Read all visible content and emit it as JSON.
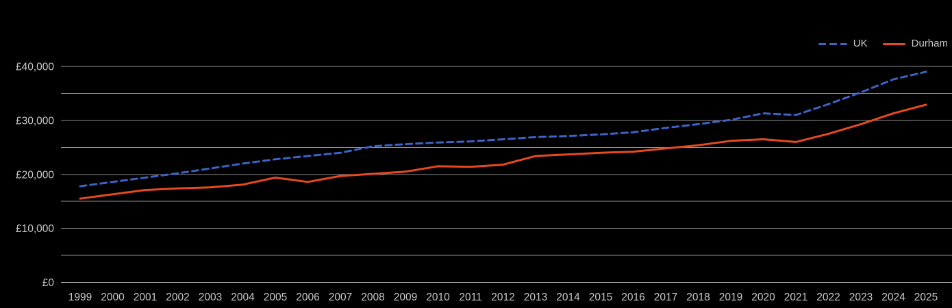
{
  "page": {
    "background": "#000000",
    "text_color": "#c8c8c8",
    "grid_color": "#8f8f8f",
    "baseline_color": "#c9c9c9"
  },
  "legend": {
    "position": "top-right",
    "items": [
      {
        "label": "UK",
        "color": "#3c63c8",
        "dashed": true
      },
      {
        "label": "Durham",
        "color": "#e8491d",
        "dashed": false
      }
    ]
  },
  "chart_data": {
    "type": "line",
    "title": "",
    "xlabel": "",
    "ylabel": "",
    "x": [
      1999,
      2000,
      2001,
      2002,
      2003,
      2004,
      2005,
      2006,
      2007,
      2008,
      2009,
      2010,
      2011,
      2012,
      2013,
      2014,
      2015,
      2016,
      2017,
      2018,
      2019,
      2020,
      2021,
      2022,
      2023,
      2024,
      2025
    ],
    "series": [
      {
        "name": "UK",
        "color": "#3c63c8",
        "dashed": true,
        "values": [
          17800,
          18600,
          19400,
          20200,
          21100,
          22000,
          22800,
          23400,
          24000,
          25200,
          25600,
          25900,
          26100,
          26500,
          26900,
          27100,
          27400,
          27800,
          28600,
          29300,
          30100,
          31300,
          31000,
          33000,
          35200,
          37600,
          39000
        ]
      },
      {
        "name": "Durham",
        "color": "#e8491d",
        "dashed": false,
        "values": [
          15500,
          16300,
          17100,
          17400,
          17600,
          18100,
          19400,
          18600,
          19700,
          20100,
          20500,
          21500,
          21400,
          21800,
          23400,
          23700,
          24000,
          24200,
          24800,
          25400,
          26200,
          26500,
          26000,
          27500,
          29300,
          31300,
          32900
        ]
      }
    ],
    "ylim": [
      0,
      40000
    ],
    "y_grid_interval": 5000,
    "y_label_interval": 10000,
    "y_tick_prefix": "£",
    "y_tick_labels": [
      "£0",
      "£10,000",
      "£20,000",
      "£30,000",
      "£40,000"
    ],
    "grid": true,
    "legend_position": "top-right"
  }
}
